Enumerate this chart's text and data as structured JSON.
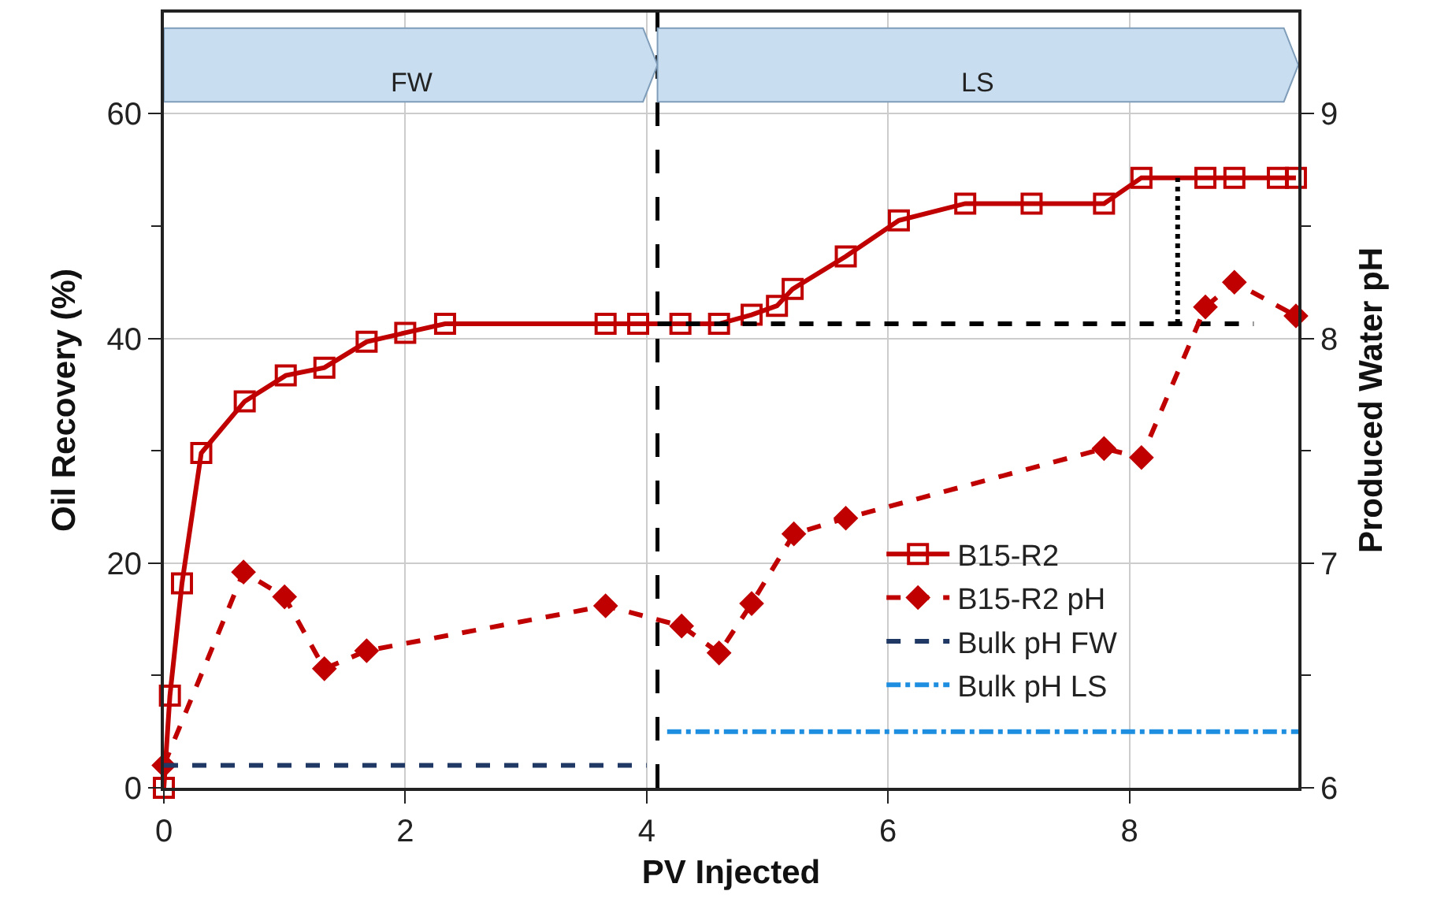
{
  "chart_data": {
    "type": "line",
    "xlabel": "PV Injected",
    "ylabel": "Oil Recovery (%)",
    "y2label": "Produced Water pH",
    "xlim": [
      0,
      9.4
    ],
    "xticks": [
      0,
      2,
      4,
      6,
      8
    ],
    "ylim": [
      0,
      69
    ],
    "yticks": [
      0,
      20,
      40,
      60
    ],
    "y2lim": [
      6,
      9.45
    ],
    "y2ticks": [
      6,
      7,
      8,
      9
    ],
    "grid": true,
    "legend": "center right",
    "series": [
      {
        "name": "B15-R2",
        "color": "#c00000",
        "marker": "square",
        "line_style": "solid",
        "x": [
          0,
          0.05,
          0.15,
          0.31,
          0.67,
          1.01,
          1.33,
          1.68,
          2.0,
          2.33,
          3.66,
          3.93,
          4.28,
          4.6,
          4.87,
          5.08,
          5.21,
          5.65,
          6.09,
          6.64,
          7.19,
          7.79,
          8.1,
          8.63,
          8.87,
          9.23,
          9.38
        ],
        "values": [
          0,
          8.2,
          18.2,
          29.8,
          34.4,
          36.7,
          37.4,
          39.7,
          40.5,
          41.3,
          41.3,
          41.3,
          41.3,
          41.3,
          42.1,
          42.9,
          44.4,
          47.3,
          50.5,
          52.0,
          52.0,
          52.0,
          54.3,
          54.3,
          54.3,
          54.3,
          54.3
        ]
      },
      {
        "name": "B15-R2 pH",
        "color": "#c00000",
        "marker": "diamond",
        "line_style": "dashed",
        "axis": "y2",
        "x": [
          0,
          0.66,
          1.0,
          1.33,
          1.68,
          3.66,
          4.29,
          4.6,
          4.87,
          5.22,
          5.65,
          7.79,
          8.1,
          8.63,
          8.87,
          9.38
        ],
        "values": [
          6.1,
          6.96,
          6.85,
          6.53,
          6.61,
          6.81,
          6.72,
          6.6,
          6.82,
          7.13,
          7.2,
          7.51,
          7.47,
          8.14,
          8.25,
          8.1
        ]
      },
      {
        "name": "Bulk pH FW",
        "color": "#1f3864",
        "marker": "none",
        "line_style": "dashed",
        "axis": "y2",
        "x": [
          0,
          4.0
        ],
        "values": [
          6.1,
          6.1
        ]
      },
      {
        "name": "Bulk pH LS",
        "color": "#1e8fe0",
        "marker": "none",
        "line_style": "dashdot",
        "axis": "y2",
        "x": [
          4.17,
          9.4
        ],
        "values": [
          6.25,
          6.25
        ]
      },
      {
        "color": "#000000",
        "marker": "none",
        "line_style": "dashed",
        "x": [
          4.09,
          9.03
        ],
        "values": [
          41.3,
          41.3
        ]
      },
      {
        "color": "#000000",
        "marker": "none",
        "line_style": "dotted",
        "x": [
          8.4,
          8.4
        ],
        "values": [
          41.3,
          54.3
        ]
      }
    ],
    "ref_lines": [
      {
        "axis": "x",
        "value": 4.09,
        "color": "#000000",
        "line_style": "dashed"
      }
    ],
    "bands": [
      {
        "axis": "x",
        "from": 0,
        "to": 4.09,
        "label": "FW",
        "color": "#c9ddf0"
      },
      {
        "axis": "x",
        "from": 4.09,
        "to": 9.4,
        "label": "LS",
        "color": "#c9ddf0"
      }
    ]
  }
}
